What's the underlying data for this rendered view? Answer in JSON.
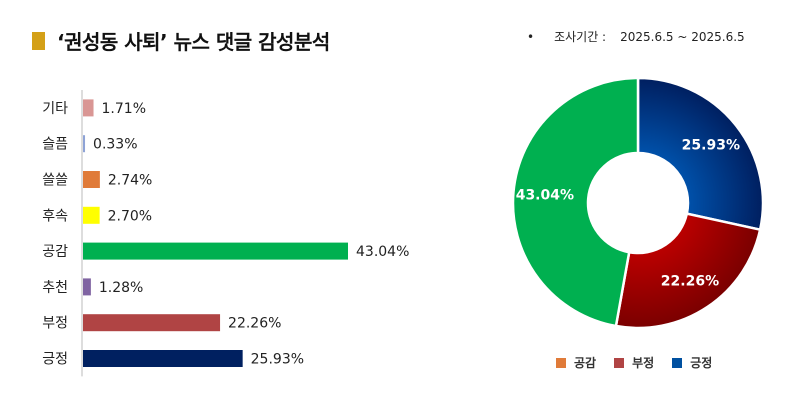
{
  "header": {
    "title": "‘권성동 사퇴’ 뉴스 댓글 감성분석",
    "title_mark_color": "#d4a017",
    "period_bullet": "•",
    "period_label": "조사기간 :",
    "period_value": "2025.6.5 ~ 2025.6.5"
  },
  "chart_data": [
    {
      "type": "bar",
      "orientation": "horizontal",
      "categories": [
        "기타",
        "슬픔",
        "쓸쓸",
        "후속",
        "공감",
        "추천",
        "부정",
        "긍정"
      ],
      "values": [
        1.71,
        0.33,
        2.74,
        2.7,
        43.04,
        1.28,
        22.26,
        25.93
      ],
      "value_labels": [
        "1.71%",
        "0.33%",
        "2.74%",
        "2.70%",
        "43.04%",
        "1.28%",
        "22.26%",
        "25.93%"
      ],
      "colors": [
        "#d99694",
        "#8ea3d6",
        "#e07b39",
        "#ffff00",
        "#00b050",
        "#8064a2",
        "#b04444",
        "#002060"
      ],
      "unit": "%"
    },
    {
      "type": "pie",
      "donut": true,
      "categories": [
        "긍정",
        "부정",
        "공감"
      ],
      "values": [
        25.93,
        22.26,
        43.04
      ],
      "value_labels": [
        "25.93%",
        "22.26%",
        "43.04%"
      ],
      "colors": [
        "#0055b0",
        "#c00000",
        "#00b050"
      ],
      "legend_position": "bottom",
      "legend": [
        {
          "label": "공감",
          "color": "#e07b39"
        },
        {
          "label": "부정",
          "color": "#b04444"
        },
        {
          "label": "긍정",
          "color": "#0050a0"
        }
      ]
    }
  ]
}
